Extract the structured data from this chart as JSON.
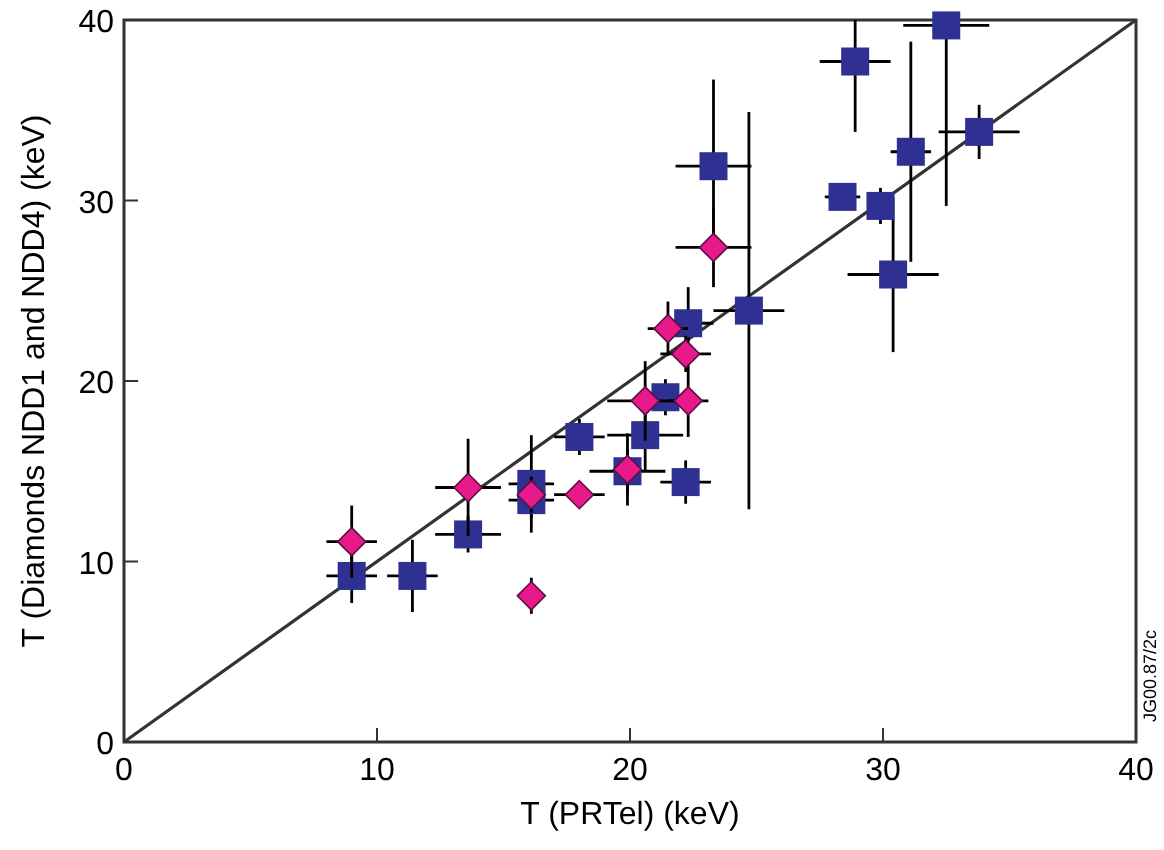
{
  "chart_data": {
    "type": "scatter",
    "xlabel": "T (PRTel) (keV)",
    "ylabel": "T (Diamonds NDD1 and NDD4) (keV)",
    "xlim": [
      0,
      40
    ],
    "ylim": [
      0,
      40
    ],
    "xticks": [
      0,
      10,
      20,
      30,
      40
    ],
    "yticks": [
      0,
      10,
      20,
      30,
      40
    ],
    "annotations": [
      "JG00.87/2c"
    ],
    "series": [
      {
        "type": "line",
        "color": "#333333",
        "x": [
          0,
          40
        ],
        "values": [
          0,
          40
        ],
        "line_style": "solid"
      },
      {
        "color": "#2e3192",
        "marker": "square",
        "x": [
          9.0,
          11.4,
          13.6,
          16.1,
          16.1,
          18.0,
          19.9,
          20.6,
          21.4,
          22.2,
          22.3,
          24.7,
          23.3,
          28.9,
          32.5,
          33.8,
          31.1,
          28.4,
          29.9,
          30.4
        ],
        "values": [
          9.2,
          9.2,
          11.5,
          14.3,
          13.4,
          16.9,
          15.0,
          17.0,
          19.1,
          14.4,
          23.2,
          23.9,
          31.9,
          37.7,
          39.7,
          33.8,
          32.7,
          30.2,
          29.7,
          25.9
        ],
        "xerrors": [
          1.0,
          1.0,
          1.3,
          0.9,
          0.9,
          1.0,
          1.5,
          1.5,
          null,
          1.0,
          1.0,
          1.4,
          1.5,
          1.4,
          1.7,
          1.6,
          0.8,
          0.7,
          null,
          1.8
        ],
        "errors": [
          1.5,
          2.0,
          1.0,
          2.7,
          1.0,
          1.0,
          1.2,
          2.0,
          1.0,
          1.2,
          2.0,
          11.0,
          4.8,
          [
            33.8,
            40
          ],
          [
            29.7,
            39.7
          ],
          1.5,
          6.1,
          null,
          1.0,
          4.3
        ]
      },
      {
        "color": "#e8198b",
        "marker": "diamond",
        "x": [
          9.0,
          13.6,
          16.1,
          16.1,
          18.0,
          19.9,
          20.6,
          22.3,
          22.2,
          21.5,
          23.3
        ],
        "values": [
          11.1,
          14.1,
          13.7,
          8.1,
          13.7,
          15.1,
          18.9,
          18.9,
          21.5,
          22.9,
          27.4
        ],
        "xerrors": [
          1.0,
          1.3,
          null,
          0.5,
          1.0,
          null,
          1.5,
          0.8,
          1.0,
          0.8,
          1.5
        ],
        "errors": [
          2.0,
          2.7,
          1.0,
          1.0,
          null,
          2.0,
          2.2,
          2.0,
          1.0,
          1.5,
          2.2
        ]
      }
    ]
  }
}
